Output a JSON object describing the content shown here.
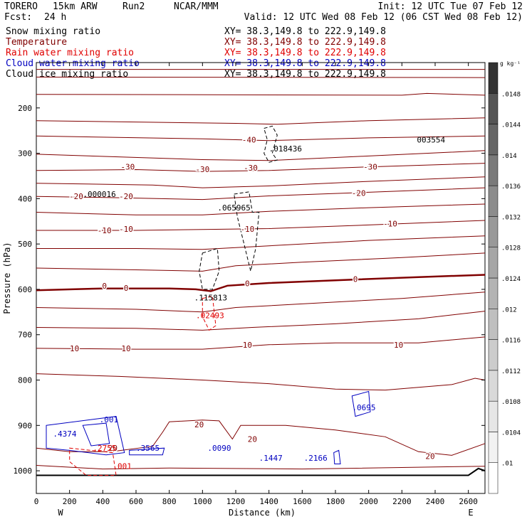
{
  "header": {
    "model": "TORERO",
    "resolution": "15km ARW",
    "run": "Run2",
    "center": "NCAR/MMM",
    "init": "Init: 12 UTC Tue 07 Feb 12",
    "fcst": "Fcst:",
    "fcst_hours": "24 h",
    "valid": "Valid: 12 UTC Wed 08 Feb 12 (06 CST Wed 08 Feb 12)"
  },
  "colors": {
    "snow": "#000000",
    "temperature": "#800000",
    "rain": "#e00000",
    "cloud_water": "#0000c0",
    "cloud_ice": "#000000",
    "text": "#000000"
  },
  "chart_data": {
    "type": "contour-cross-section",
    "xlabel": "Distance (km)",
    "ylabel": "Pressure (hPa)",
    "xlim": [
      0,
      2700
    ],
    "ylim": [
      1050,
      100
    ],
    "x_ticks": [
      0,
      200,
      400,
      600,
      800,
      1000,
      1200,
      1400,
      1600,
      1800,
      2000,
      2200,
      2400,
      2600
    ],
    "y_ticks": [
      200,
      300,
      400,
      500,
      600,
      700,
      800,
      900,
      1000
    ],
    "west_label": "W",
    "east_label": "E",
    "fields": [
      {
        "name": "Snow mixing ratio",
        "xy": "XY=  38.3,149.8 to 222.9,149.8",
        "color": "#000000"
      },
      {
        "name": "Temperature",
        "xy": "XY=  38.3,149.8 to 222.9,149.8",
        "color": "#800000"
      },
      {
        "name": "Rain water mixing ratio",
        "xy": "XY=  38.3,149.8 to 222.9,149.8",
        "color": "#e00000"
      },
      {
        "name": "Cloud water mixing ratio",
        "xy": "XY=  38.3,149.8 to 222.9,149.8",
        "color": "#0000c0"
      },
      {
        "name": "Cloud ice mixing ratio",
        "xy": "XY=  38.3,149.8 to 222.9,149.8",
        "color": "#000000"
      }
    ],
    "temperature_labels": [
      {
        "text": "-40",
        "x": 1280,
        "p": 270
      },
      {
        "text": "-30",
        "x": 550,
        "p": 330
      },
      {
        "text": "-30",
        "x": 1000,
        "p": 335
      },
      {
        "text": "-30",
        "x": 1290,
        "p": 332
      },
      {
        "text": "-30",
        "x": 2010,
        "p": 330
      },
      {
        "text": "-20",
        "x": 240,
        "p": 395
      },
      {
        "text": "-20",
        "x": 540,
        "p": 395
      },
      {
        "text": "-20",
        "x": 1940,
        "p": 388
      },
      {
        "text": "-10",
        "x": 410,
        "p": 470
      },
      {
        "text": "-10",
        "x": 540,
        "p": 467
      },
      {
        "text": "-10",
        "x": 1270,
        "p": 467
      },
      {
        "text": "-10",
        "x": 2130,
        "p": 455
      },
      {
        "text": "0",
        "x": 410,
        "p": 592
      },
      {
        "text": "0",
        "x": 540,
        "p": 597
      },
      {
        "text": "0",
        "x": 1270,
        "p": 587
      },
      {
        "text": "0",
        "x": 1920,
        "p": 577
      },
      {
        "text": "10",
        "x": 230,
        "p": 730
      },
      {
        "text": "10",
        "x": 540,
        "p": 730
      },
      {
        "text": "10",
        "x": 1270,
        "p": 722
      },
      {
        "text": "10",
        "x": 2180,
        "p": 722
      },
      {
        "text": "20",
        "x": 460,
        "p": 950
      },
      {
        "text": "20",
        "x": 980,
        "p": 898
      },
      {
        "text": "20",
        "x": 1300,
        "p": 930
      },
      {
        "text": "20",
        "x": 2370,
        "p": 968
      }
    ],
    "extremes": [
      {
        "text": "003554",
        "x": 2290,
        "p": 270,
        "color": "#000000"
      },
      {
        "text": ".018436",
        "x": 1400,
        "p": 290,
        "color": "#000000"
      },
      {
        "text": ".000016",
        "x": 280,
        "p": 390,
        "color": "#000000"
      },
      {
        "text": ".065965",
        "x": 1090,
        "p": 420,
        "color": "#000000"
      },
      {
        "text": ".115813",
        "x": 950,
        "p": 618,
        "color": "#000000"
      },
      {
        "text": ".02493",
        "x": 960,
        "p": 657,
        "color": "#e00000"
      },
      {
        "text": ".001",
        "x": 380,
        "p": 887,
        "color": "#0000c0"
      },
      {
        "text": ".4374",
        "x": 100,
        "p": 918,
        "color": "#0000c0"
      },
      {
        "text": ".2755",
        "x": 340,
        "p": 950,
        "color": "#e00000"
      },
      {
        "text": ".3565",
        "x": 600,
        "p": 950,
        "color": "#0000c0"
      },
      {
        "text": ".0090",
        "x": 1030,
        "p": 950,
        "color": "#0000c0"
      },
      {
        "text": ".1447",
        "x": 1340,
        "p": 972,
        "color": "#0000c0"
      },
      {
        "text": ".2166",
        "x": 1610,
        "p": 972,
        "color": "#0000c0"
      },
      {
        "text": ".0695",
        "x": 1900,
        "p": 860,
        "color": "#0000c0"
      },
      {
        "text": ".001",
        "x": 460,
        "p": 990,
        "color": "#e00000"
      }
    ],
    "colorbar": {
      "unit": "g kg⁻¹",
      "levels": [
        ".01",
        ".0104",
        ".0108",
        ".0112",
        ".0116",
        ".012",
        ".0124",
        ".0128",
        ".0132",
        ".0136",
        ".014",
        ".0144",
        ".0148"
      ],
      "colors": [
        "#ffffff",
        "#f2f2f2",
        "#e6e6e6",
        "#d9d9d9",
        "#cccccc",
        "#bfbfbf",
        "#b3b3b3",
        "#a6a6a6",
        "#999999",
        "#8c8c8c",
        "#7a7a7a",
        "#666666",
        "#555555",
        "#333333"
      ]
    }
  }
}
